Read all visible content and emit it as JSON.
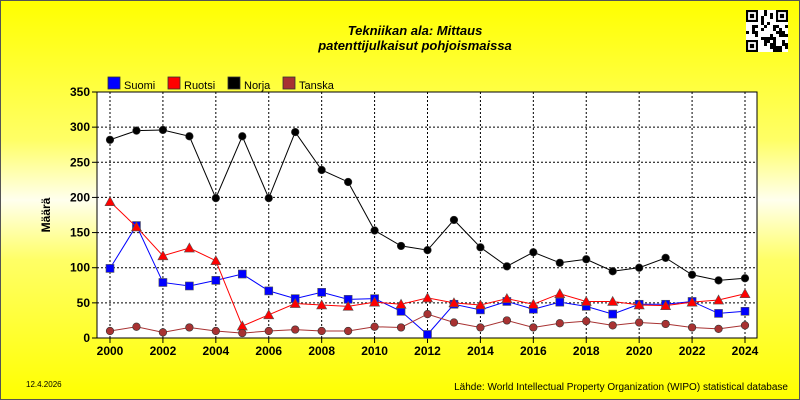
{
  "chart_data": {
    "type": "line",
    "title": "Tekniikan ala: Mittaus",
    "subtitle": "patenttijulkaisut pohjoismaissa",
    "xlabel": "",
    "ylabel": "Määrä",
    "x": [
      2000,
      2001,
      2002,
      2003,
      2004,
      2005,
      2006,
      2007,
      2008,
      2009,
      2010,
      2011,
      2012,
      2013,
      2014,
      2015,
      2016,
      2017,
      2018,
      2019,
      2020,
      2021,
      2022,
      2023,
      2024
    ],
    "x_tick_labels": [
      "2000",
      "2002",
      "2004",
      "2006",
      "2008",
      "2010",
      "2012",
      "2014",
      "2016",
      "2018",
      "2020",
      "2022",
      "2024"
    ],
    "y_tick_labels": [
      "0",
      "50",
      "100",
      "150",
      "200",
      "250",
      "300",
      "350"
    ],
    "ylim": [
      0,
      350
    ],
    "xlim": [
      2000,
      2024
    ],
    "grid": true,
    "legend_position": "top-left",
    "series": [
      {
        "name": "Suomi",
        "color": "#0000ff",
        "marker": "square",
        "values": [
          99,
          160,
          79,
          74,
          82,
          91,
          67,
          56,
          65,
          55,
          56,
          38,
          5,
          48,
          40,
          52,
          41,
          51,
          45,
          34,
          48,
          48,
          52,
          35,
          38
        ]
      },
      {
        "name": "Ruotsi",
        "color": "#ff0000",
        "marker": "triangle",
        "values": [
          194,
          158,
          117,
          128,
          110,
          17,
          33,
          49,
          47,
          45,
          51,
          48,
          57,
          50,
          47,
          56,
          48,
          63,
          52,
          52,
          47,
          46,
          51,
          54,
          63
        ]
      },
      {
        "name": "Norja",
        "color": "#000000",
        "marker": "circle",
        "values": [
          282,
          295,
          296,
          287,
          199,
          287,
          199,
          293,
          239,
          222,
          153,
          131,
          125,
          168,
          129,
          102,
          122,
          107,
          112,
          95,
          100,
          114,
          90,
          82,
          85
        ]
      },
      {
        "name": "Tanska",
        "color": "#a83232",
        "marker": "circle",
        "values": [
          10,
          16,
          8,
          15,
          10,
          7,
          10,
          12,
          10,
          10,
          16,
          15,
          34,
          22,
          15,
          25,
          15,
          21,
          24,
          18,
          22,
          20,
          15,
          13,
          18
        ]
      }
    ]
  },
  "date": "12.4.2026",
  "source": "Lähde: World Intellectual Property Organization (WIPO) statistical database",
  "qr_icon": "qr-code-icon"
}
